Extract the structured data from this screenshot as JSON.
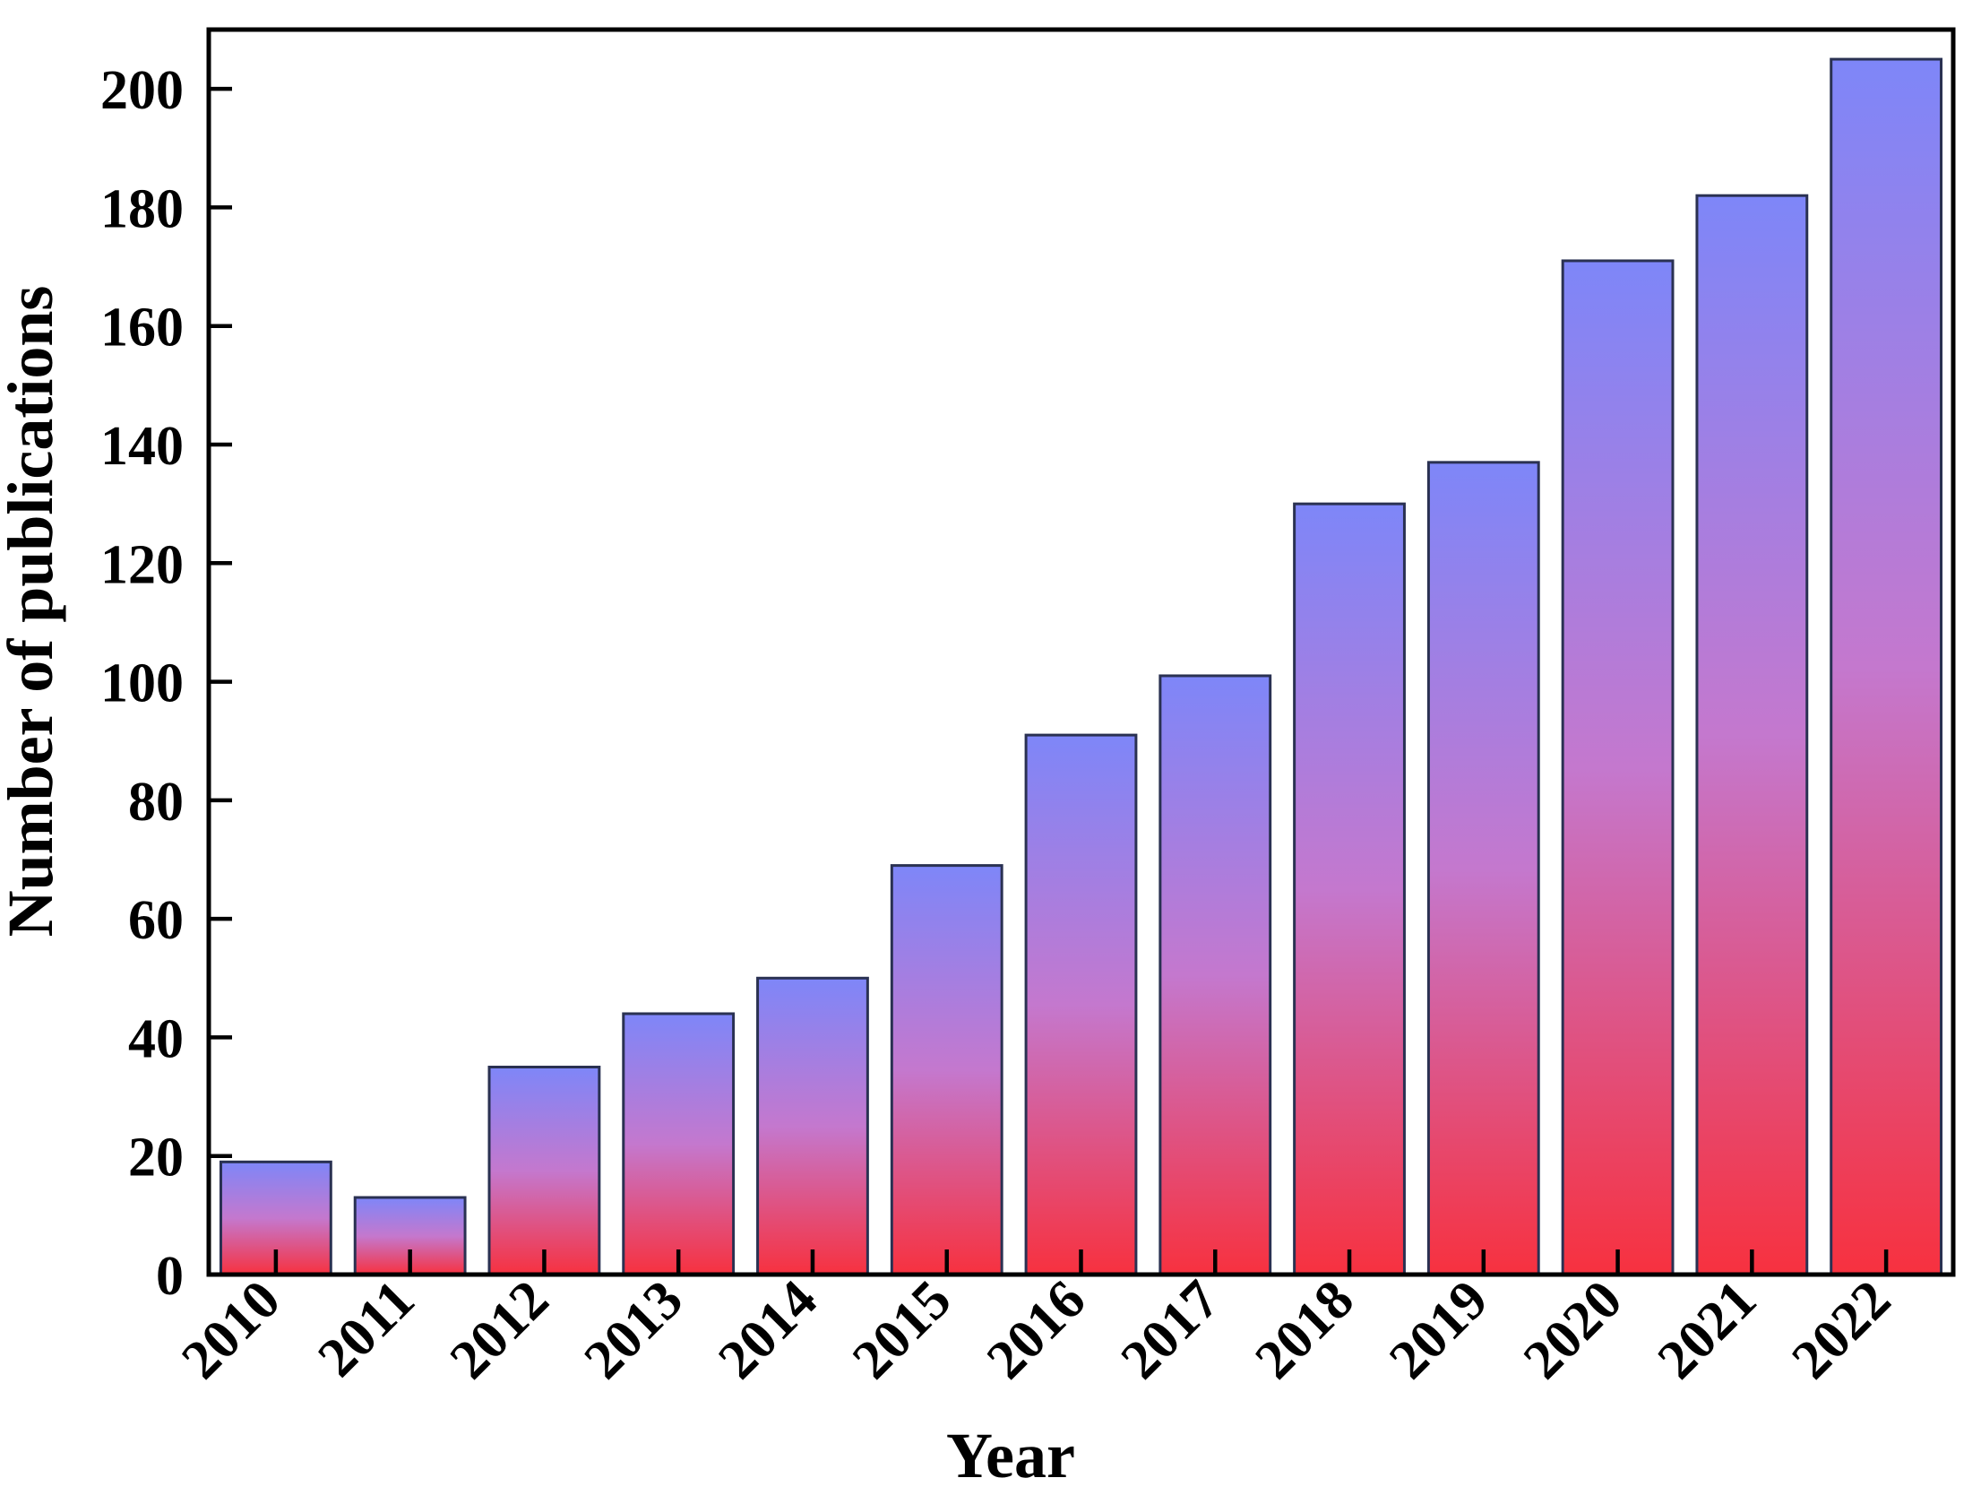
{
  "chart_data": {
    "type": "bar",
    "title": "",
    "categories": [
      "2010",
      "2011",
      "2012",
      "2013",
      "2014",
      "2015",
      "2016",
      "2017",
      "2018",
      "2019",
      "2020",
      "2021",
      "2022"
    ],
    "values": [
      19,
      13,
      35,
      44,
      50,
      69,
      91,
      101,
      130,
      137,
      171,
      182,
      205
    ],
    "xlabel": "Year",
    "ylabel": "Number of publications",
    "ylim": [
      0,
      210
    ],
    "yticks": [
      0,
      20,
      40,
      60,
      80,
      100,
      120,
      140,
      160,
      180,
      200
    ],
    "grid": false,
    "legend": false,
    "x_tick_label_rotation_deg": 45,
    "colors": {
      "bar_gradient_top": "#7e86f8",
      "bar_gradient_middle": "#c478ce",
      "bar_gradient_bottom": "#f7313f",
      "bar_border": "#2a3152",
      "axis": "#000000",
      "background": "#ffffff"
    }
  }
}
